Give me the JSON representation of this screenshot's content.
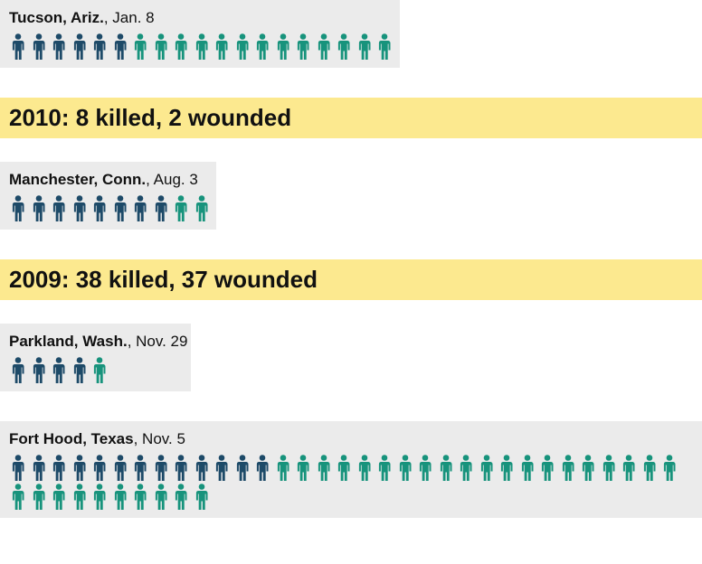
{
  "chart_data": {
    "type": "pictogram",
    "killed_color": "#1d4a68",
    "wounded_color": "#17937c",
    "items": [
      {
        "place": "Tucson, Ariz.",
        "date": ", Jan. 8",
        "killed": 6,
        "wounded": 13
      },
      {
        "heading": "2010: 8 killed, 2 wounded"
      },
      {
        "place": "Manchester, Conn.",
        "date": ", Aug. 3",
        "killed": 8,
        "wounded": 2
      },
      {
        "heading": "2009: 38 killed, 37 wounded"
      },
      {
        "place": "Parkland, Wash.",
        "date": ", Nov. 29",
        "killed": 4,
        "wounded": 1
      },
      {
        "place": "Fort Hood, Texas",
        "date": ", Nov. 5",
        "killed": 13,
        "wounded": 30
      }
    ]
  }
}
